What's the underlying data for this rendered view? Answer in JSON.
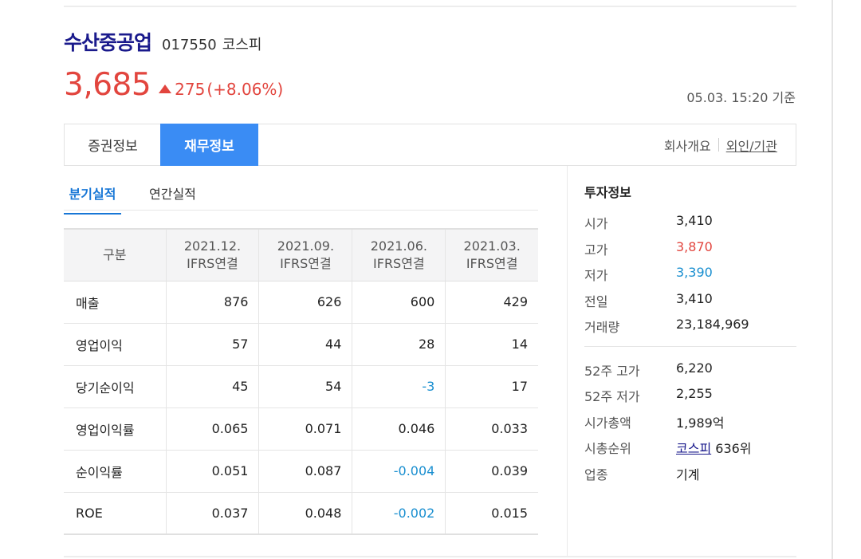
{
  "stock": {
    "name": "수산중공업",
    "code": "017550",
    "market": "코스피",
    "price": "3,685",
    "change": "275",
    "change_pct": "(+8.06%)",
    "timestamp": "05.03. 15:20 기준"
  },
  "tabs": [
    {
      "label": "증권정보",
      "active": false
    },
    {
      "label": "재무정보",
      "active": true
    }
  ],
  "tab_links": {
    "company": "회사개요",
    "foreign": "외인/기관"
  },
  "subtabs": [
    {
      "label": "분기실적",
      "active": true
    },
    {
      "label": "연간실적",
      "active": false
    }
  ],
  "table": {
    "header_label": "구분",
    "columns": [
      {
        "date": "2021.12.",
        "basis": "IFRS연결"
      },
      {
        "date": "2021.09.",
        "basis": "IFRS연결"
      },
      {
        "date": "2021.06.",
        "basis": "IFRS연결"
      },
      {
        "date": "2021.03.",
        "basis": "IFRS연결"
      }
    ],
    "rows": [
      {
        "label": "매출",
        "values": [
          "876",
          "626",
          "600",
          "429"
        ]
      },
      {
        "label": "영업이익",
        "values": [
          "57",
          "44",
          "28",
          "14"
        ]
      },
      {
        "label": "당기순이익",
        "values": [
          "45",
          "54",
          "-3",
          "17"
        ]
      },
      {
        "label": "영업이익률",
        "values": [
          "0.065",
          "0.071",
          "0.046",
          "0.033"
        ]
      },
      {
        "label": "순이익률",
        "values": [
          "0.051",
          "0.087",
          "-0.004",
          "0.039"
        ]
      },
      {
        "label": "ROE",
        "values": [
          "0.037",
          "0.048",
          "-0.002",
          "0.015"
        ]
      }
    ]
  },
  "invest": {
    "title": "투자정보",
    "open": {
      "label": "시가",
      "value": "3,410"
    },
    "high": {
      "label": "고가",
      "value": "3,870"
    },
    "low": {
      "label": "저가",
      "value": "3,390"
    },
    "prev": {
      "label": "전일",
      "value": "3,410"
    },
    "volume": {
      "label": "거래량",
      "value": "23,184,969"
    },
    "high52": {
      "label": "52주 고가",
      "value": "6,220"
    },
    "low52": {
      "label": "52주 저가",
      "value": "2,255"
    },
    "mcap": {
      "label": "시가총액",
      "value": "1,989억"
    },
    "rank": {
      "label": "시총순위",
      "market": "코스피",
      "value": " 636위"
    },
    "industry": {
      "label": "업종",
      "value": "기계"
    }
  },
  "colors": {
    "up": "#e2453e",
    "down": "#1a8fd0",
    "active_tab": "#3a8cf4",
    "name": "#1a1a8c"
  }
}
